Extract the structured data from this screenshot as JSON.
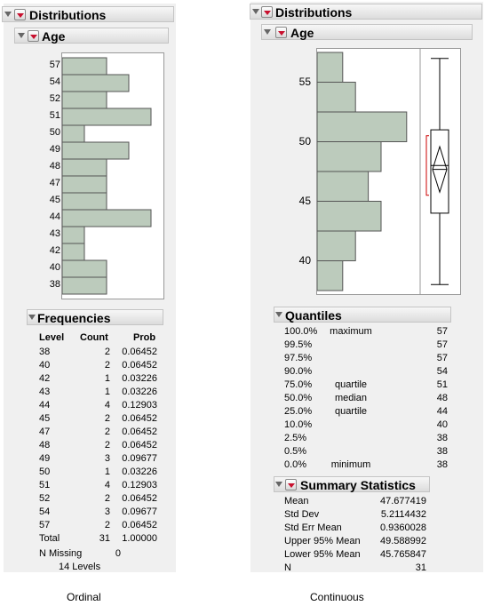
{
  "left": {
    "distributions_title": "Distributions",
    "age_title": "Age",
    "categories": [
      "57",
      "54",
      "52",
      "51",
      "50",
      "49",
      "48",
      "47",
      "45",
      "44",
      "43",
      "42",
      "40",
      "38"
    ],
    "frequencies_title": "Frequencies",
    "table_headers": [
      "Level",
      "Count",
      "Prob"
    ],
    "rows": [
      {
        "level": "38",
        "count": "2",
        "prob": "0.06452"
      },
      {
        "level": "40",
        "count": "2",
        "prob": "0.06452"
      },
      {
        "level": "42",
        "count": "1",
        "prob": "0.03226"
      },
      {
        "level": "43",
        "count": "1",
        "prob": "0.03226"
      },
      {
        "level": "44",
        "count": "4",
        "prob": "0.12903"
      },
      {
        "level": "45",
        "count": "2",
        "prob": "0.06452"
      },
      {
        "level": "47",
        "count": "2",
        "prob": "0.06452"
      },
      {
        "level": "48",
        "count": "2",
        "prob": "0.06452"
      },
      {
        "level": "49",
        "count": "3",
        "prob": "0.09677"
      },
      {
        "level": "50",
        "count": "1",
        "prob": "0.03226"
      },
      {
        "level": "51",
        "count": "4",
        "prob": "0.12903"
      },
      {
        "level": "52",
        "count": "2",
        "prob": "0.06452"
      },
      {
        "level": "54",
        "count": "3",
        "prob": "0.09677"
      },
      {
        "level": "57",
        "count": "2",
        "prob": "0.06452"
      }
    ],
    "total_label": "Total",
    "total_count": "31",
    "total_prob": "1.00000",
    "n_missing_label": "N Missing",
    "n_missing_value": "0",
    "levels_text": "14  Levels",
    "caption": "Ordinal"
  },
  "right": {
    "distributions_title": "Distributions",
    "age_title": "Age",
    "quantiles_title": "Quantiles",
    "quantiles": [
      {
        "pct": "100.0%",
        "label": "maximum",
        "value": "57"
      },
      {
        "pct": "99.5%",
        "label": "",
        "value": "57"
      },
      {
        "pct": "97.5%",
        "label": "",
        "value": "57"
      },
      {
        "pct": "90.0%",
        "label": "",
        "value": "54"
      },
      {
        "pct": "75.0%",
        "label": "quartile",
        "value": "51"
      },
      {
        "pct": "50.0%",
        "label": "median",
        "value": "48"
      },
      {
        "pct": "25.0%",
        "label": "quartile",
        "value": "44"
      },
      {
        "pct": "10.0%",
        "label": "",
        "value": "40"
      },
      {
        "pct": "2.5%",
        "label": "",
        "value": "38"
      },
      {
        "pct": "0.5%",
        "label": "",
        "value": "38"
      },
      {
        "pct": "0.0%",
        "label": "minimum",
        "value": "38"
      }
    ],
    "summary_title": "Summary Statistics",
    "summary": [
      {
        "label": "Mean",
        "value": "47.677419"
      },
      {
        "label": "Std Dev",
        "value": "5.2114432"
      },
      {
        "label": "Std Err Mean",
        "value": "0.9360028"
      },
      {
        "label": "Upper 95% Mean",
        "value": "49.588992"
      },
      {
        "label": "Lower 95% Mean",
        "value": "45.765847"
      },
      {
        "label": "N",
        "value": "31"
      }
    ],
    "caption": "Continuous"
  },
  "chart_data": [
    {
      "type": "bar",
      "orientation": "horizontal",
      "categories": [
        "57",
        "54",
        "52",
        "51",
        "50",
        "49",
        "48",
        "47",
        "45",
        "44",
        "43",
        "42",
        "40",
        "38"
      ],
      "values": [
        2,
        3,
        2,
        4,
        1,
        3,
        2,
        2,
        2,
        4,
        1,
        1,
        2,
        2
      ],
      "bar_color": "#bccbbc"
    },
    {
      "type": "histogram",
      "orientation": "horizontal",
      "bin_width": 2.5,
      "bins": [
        {
          "from": 37.5,
          "to": 40,
          "count": 2
        },
        {
          "from": 40,
          "to": 42.5,
          "count": 3
        },
        {
          "from": 42.5,
          "to": 45,
          "count": 5
        },
        {
          "from": 45,
          "to": 47.5,
          "count": 4
        },
        {
          "from": 47.5,
          "to": 50,
          "count": 5
        },
        {
          "from": 50,
          "to": 52.5,
          "count": 7
        },
        {
          "from": 52.5,
          "to": 55,
          "count": 3
        },
        {
          "from": 55,
          "to": 57.5,
          "count": 2
        }
      ],
      "y_ticks": [
        40,
        45,
        50,
        55
      ],
      "ylim": [
        37.5,
        57.5
      ],
      "box_plot": {
        "min": 38,
        "q1": 44,
        "median": 48,
        "q3": 51,
        "max": 57,
        "mean": 47.677419,
        "ci_low": 45.765847,
        "ci_high": 49.588992
      },
      "bar_color": "#bccbbc"
    }
  ]
}
